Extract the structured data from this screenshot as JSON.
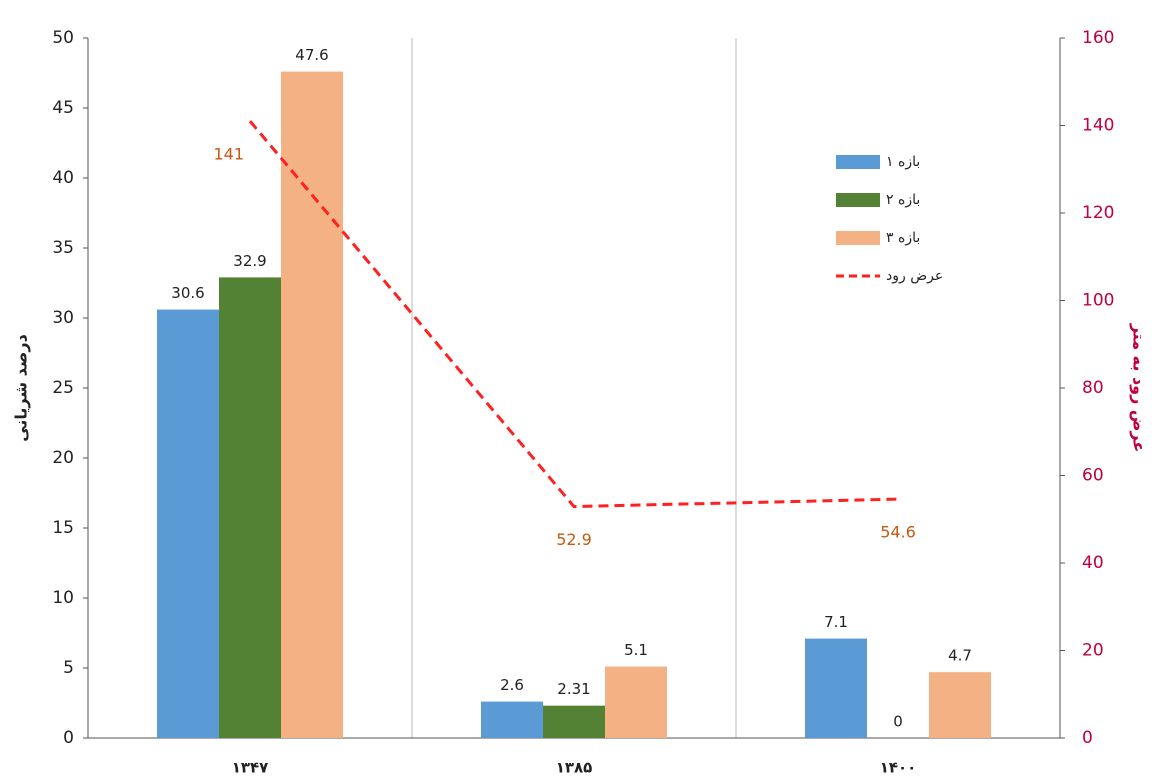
{
  "chart_data": {
    "type": "bar",
    "categories": [
      "۱۳۴۷",
      "۱۳۸۵",
      "۱۴۰۰"
    ],
    "series": [
      {
        "name": "بازه ۱",
        "color": "#5b9bd5",
        "values": [
          30.6,
          2.6,
          7.1
        ]
      },
      {
        "name": "بازه ۲",
        "color": "#548235",
        "values": [
          32.9,
          2.31,
          0
        ]
      },
      {
        "name": "بازه ۳",
        "color": "#f4b183",
        "values": [
          47.6,
          5.1,
          4.7
        ]
      },
      {
        "name": "عرض رود",
        "color": "#ff2020",
        "type": "line",
        "axis": "y2",
        "values": [
          141,
          52.9,
          54.6
        ]
      }
    ],
    "ylabel": "درصد شریانی",
    "y2label": "عرض رود به متر",
    "ylim": [
      0,
      50
    ],
    "yticks": [
      0,
      5,
      10,
      15,
      20,
      25,
      30,
      35,
      40,
      45,
      50
    ],
    "y2lim": [
      0,
      160
    ],
    "y2ticks": [
      0,
      20,
      40,
      60,
      80,
      100,
      120,
      140,
      160
    ]
  }
}
